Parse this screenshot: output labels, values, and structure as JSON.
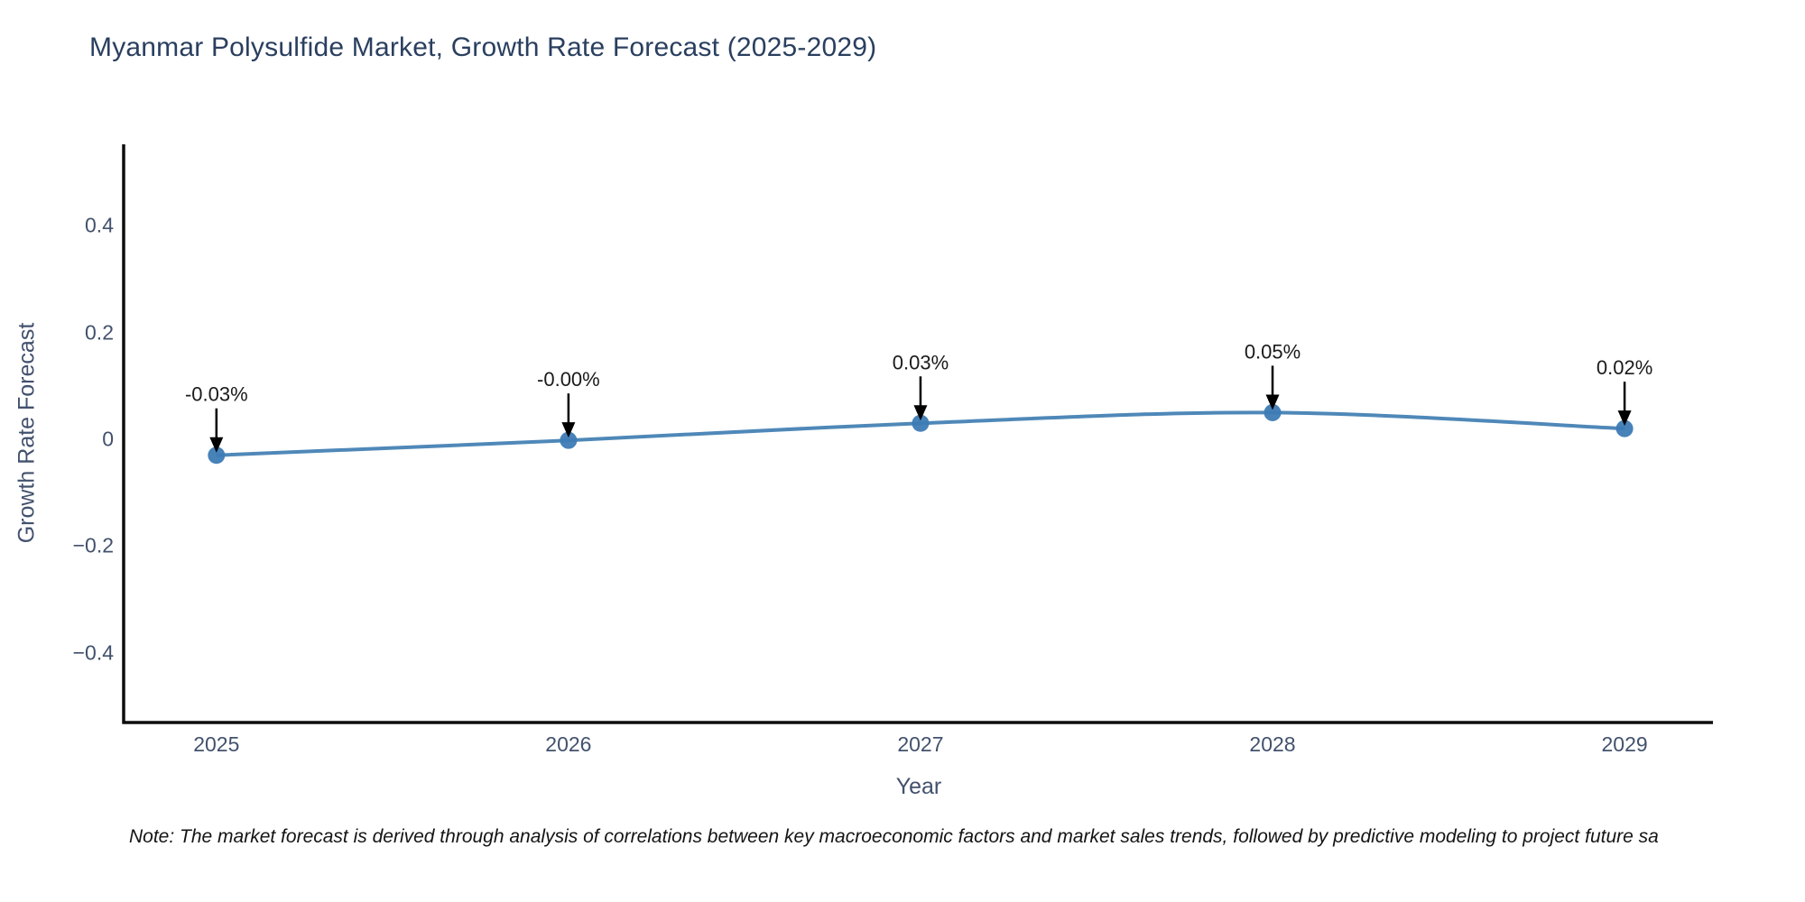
{
  "title": "Myanmar Polysulfide Market, Growth Rate Forecast (2025-2029)",
  "note": "Note: The market forecast is derived through analysis of correlations between key macroeconomic factors and market sales trends, followed by predictive modeling to project future sa",
  "chart_data": {
    "type": "line",
    "title": "Myanmar Polysulfide Market, Growth Rate Forecast (2025-2029)",
    "xlabel": "Year",
    "ylabel": "Growth Rate Forecast",
    "x": [
      2025,
      2026,
      2027,
      2028,
      2029
    ],
    "series": [
      {
        "name": "Growth Rate Forecast",
        "values": [
          -0.03,
          -0.002,
          0.03,
          0.05,
          0.02
        ]
      }
    ],
    "annotations": [
      "-0.03%",
      "-0.00%",
      "0.03%",
      "0.05%",
      "0.02%"
    ],
    "xtick_labels": [
      "2025",
      "2026",
      "2027",
      "2028",
      "2029"
    ],
    "ytick_values": [
      0.4,
      0.2,
      0,
      -0.2,
      -0.4
    ],
    "ytick_labels": [
      "0.4",
      "0.2",
      "0",
      "−0.2",
      "−0.4"
    ],
    "xlim": [
      2024.739,
      2029.251
    ],
    "ylim": [
      -0.531,
      0.553
    ],
    "grid": false,
    "legend": false,
    "colors": {
      "line": "#4682b4",
      "marker": "#3d7bb5",
      "axis": "#0d0d0d",
      "annotation_text": "#1a1a1a",
      "annotation_arrow": "#000000",
      "title_text": "#2a3f5f",
      "tick_text": "#42516d"
    }
  }
}
